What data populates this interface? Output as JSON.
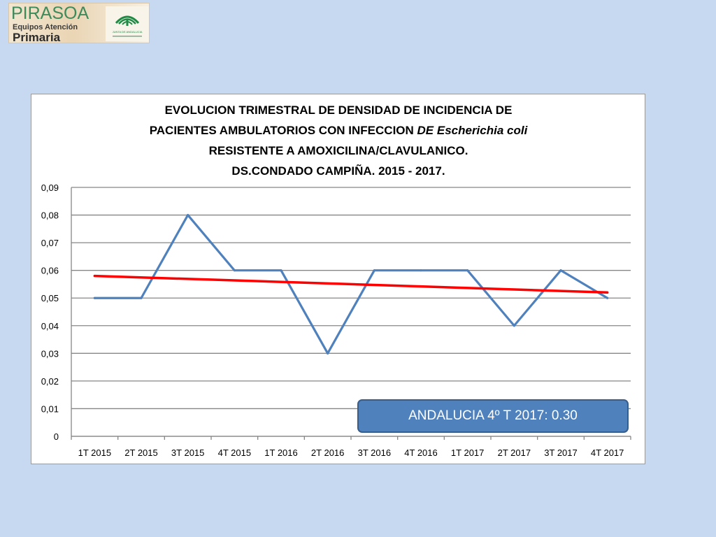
{
  "logo": {
    "brand": "PIRASOA",
    "line1": "Equipos Atención",
    "line2": "Primaria",
    "seal_text": "JUNTA DE ANDALUCIA"
  },
  "colors": {
    "background": "#c6d9f1",
    "series": "#4f81bd",
    "trend": "#ff0000",
    "grid": "#868686",
    "annotation_fill": "#4f81bd"
  },
  "chart_data": {
    "type": "line",
    "title_lines": [
      "EVOLUCION TRIMESTRAL DE DENSIDAD DE INCIDENCIA DE",
      "PACIENTES AMBULATORIOS CON INFECCION DE Escherichia coli",
      "RESISTENTE A AMOXICILINA/CLAVULANICO.",
      "DS.CONDADO CAMPIÑA. 2015 - 2017."
    ],
    "categories": [
      "1T 2015",
      "2T 2015",
      "3T 2015",
      "4T 2015",
      "1T 2016",
      "2T 2016",
      "3T 2016",
      "4T 2016",
      "1T 2017",
      "2T 2017",
      "3T 2017",
      "4T 2017"
    ],
    "series": [
      {
        "values": [
          0.05,
          0.05,
          0.08,
          0.06,
          0.06,
          0.03,
          0.06,
          0.06,
          0.06,
          0.04,
          0.06,
          0.05
        ]
      }
    ],
    "trendline": {
      "start": 0.058,
      "end": 0.052
    },
    "ylim": [
      0,
      0.09
    ],
    "yticks": [
      "0",
      "0,01",
      "0,02",
      "0,03",
      "0,04",
      "0,05",
      "0,06",
      "0,07",
      "0,08",
      "0,09"
    ],
    "grid": true,
    "annotation": "ANDALUCIA 4º T 2017: 0.30"
  }
}
